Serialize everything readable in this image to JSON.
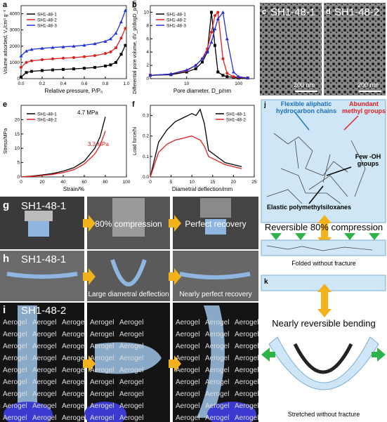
{
  "chart_data": [
    {
      "type": "line",
      "label": "a",
      "xlabel": "Relative pressure, P/P₀",
      "ylabel": "Volume adsorbed, Vₐ/cm³ g⁻¹",
      "legend": "upper left",
      "x": [
        0,
        0.05,
        0.1,
        0.2,
        0.3,
        0.4,
        0.5,
        0.6,
        0.7,
        0.8,
        0.85,
        0.9,
        0.95,
        0.99
      ],
      "xlim": [
        0,
        1
      ],
      "xticks": [
        {
          "value": 0,
          "label": "0.0"
        },
        0.2,
        0.4,
        0.6,
        0.8,
        {
          "value": 1,
          "label": "1.0"
        }
      ],
      "ylim": [
        0,
        4500
      ],
      "yticks": [
        0,
        1000,
        2000,
        3000,
        4000
      ],
      "series": [
        {
          "name": "SH1-48-1",
          "color": "#000000",
          "values": [
            100,
            380,
            450,
            500,
            540,
            570,
            600,
            640,
            690,
            780,
            850,
            1000,
            1500,
            2050
          ]
        },
        {
          "name": "SH1-48-2",
          "color": "#e02020",
          "values": [
            700,
            1000,
            1100,
            1170,
            1220,
            1260,
            1300,
            1350,
            1420,
            1550,
            1650,
            1900,
            2500,
            3100
          ]
        },
        {
          "name": "SH1-48-3",
          "color": "#2030e0",
          "values": [
            1400,
            1700,
            1800,
            1870,
            1920,
            1960,
            2000,
            2060,
            2150,
            2300,
            2450,
            2800,
            3500,
            4200
          ]
        }
      ]
    },
    {
      "type": "line",
      "label": "b",
      "xlabel": "Pore diameter, D_p/nm",
      "ylabel": "Differential pore volume, dV_p/dlogD_p/cm³ g⁻¹",
      "legend": "upper left",
      "log_x": true,
      "x": [
        2,
        5,
        10,
        15,
        20,
        25,
        30,
        35,
        40,
        50,
        60,
        80,
        100,
        150
      ],
      "xlim": [
        2,
        200
      ],
      "xticks": [
        10,
        100
      ],
      "ylim": [
        0,
        11
      ],
      "yticks": [
        0,
        2,
        4,
        6,
        8,
        10
      ],
      "series": [
        {
          "name": "SH1-48-1",
          "color": "#000000",
          "values": [
            0.5,
            0.6,
            1,
            1.5,
            2.5,
            4,
            10,
            5,
            1,
            0.5,
            0.3,
            0.2,
            0.1,
            0.1
          ]
        },
        {
          "name": "SH1-48-2",
          "color": "#e02020",
          "values": [
            0.5,
            0.7,
            1.2,
            2,
            3,
            4.5,
            7,
            9.5,
            10,
            3,
            0.8,
            0.3,
            0.2,
            0.1
          ]
        },
        {
          "name": "SH1-48-3",
          "color": "#2030e0",
          "values": [
            0.5,
            0.7,
            1.3,
            2,
            3,
            4,
            5.5,
            7.5,
            9,
            10,
            6,
            1,
            0.3,
            0.1
          ]
        }
      ]
    },
    {
      "type": "line",
      "label": "e",
      "xlabel": "Strain/%",
      "ylabel": "Stress/MPa",
      "legend": "upper left",
      "annotations": [
        "4.7 MPa",
        "3.3 MPa"
      ],
      "x": [
        0,
        10,
        20,
        30,
        40,
        50,
        60,
        70,
        75,
        80
      ],
      "xlim": [
        0,
        100
      ],
      "xticks": [
        0,
        20,
        40,
        60,
        80,
        100
      ],
      "ylim": [
        0,
        25
      ],
      "yticks": [
        0,
        5,
        10,
        15,
        20
      ],
      "series": [
        {
          "name": "SH1-48-1",
          "color": "#000000",
          "values": [
            0,
            0.3,
            0.7,
            1.2,
            2,
            3.2,
            5.5,
            10,
            14,
            21
          ]
        },
        {
          "name": "SH1-48-2",
          "color": "#e02020",
          "values": [
            0,
            0.2,
            0.5,
            0.9,
            1.5,
            2.5,
            4.5,
            8,
            11,
            16
          ]
        }
      ]
    },
    {
      "type": "line",
      "label": "f",
      "xlabel": "Diametral deflection/mm",
      "ylabel": "Load force/N",
      "legend": "upper right",
      "x": [
        0,
        2,
        4,
        6,
        8,
        10,
        11,
        12,
        13,
        14,
        16,
        18,
        20,
        22
      ],
      "xlim": [
        0,
        25
      ],
      "xticks": [
        0,
        5,
        10,
        15,
        20,
        25
      ],
      "ylim": [
        0,
        0.35
      ],
      "yticks": [
        {
          "value": 0,
          "label": "0.0"
        },
        0.1,
        0.2,
        0.3
      ],
      "series": [
        {
          "name": "SH1-48-1",
          "color": "#000000",
          "values": [
            0,
            0.17,
            0.23,
            0.27,
            0.29,
            0.31,
            0.3,
            0.33,
            0.26,
            0.13,
            0.1,
            0.07,
            0.06,
            0.05
          ]
        },
        {
          "name": "SH1-48-2",
          "color": "#e02020",
          "values": [
            0,
            0.12,
            0.16,
            0.18,
            0.19,
            0.2,
            0.19,
            0.18,
            0.15,
            0.1,
            0.08,
            0.06,
            0.05,
            0.04
          ]
        }
      ]
    }
  ],
  "sem": {
    "c": "c",
    "d": "d",
    "c_sample": "SH1-48-1",
    "d_sample": "SH1-48-2",
    "scale": "200 nm"
  },
  "photos": {
    "g": "g",
    "h": "h",
    "i": "i",
    "g_sample": "SH1-48-1",
    "g_mid": "80% compression",
    "g_end": "Perfect recovery",
    "h_sample": "SH1-48-1",
    "h_mid": "Large diametral deflection",
    "h_end": "Nearly perfect recovery",
    "i_sample": "SH1-48-2",
    "paper": "Aerogel"
  },
  "schematic": {
    "j": "j",
    "k": "k",
    "chains": "Flexible aliphatic hydrocarbon chains",
    "methyl": "Abundant methyl groups",
    "oh": "Few -OH groups",
    "siloxane": "Elastic polymethylsiloxanes",
    "compression": "Reversible 80% compression",
    "folded": "Folded without fracture",
    "bending": "Nearly reversible bending",
    "stretched": "Stretched without fracture"
  }
}
